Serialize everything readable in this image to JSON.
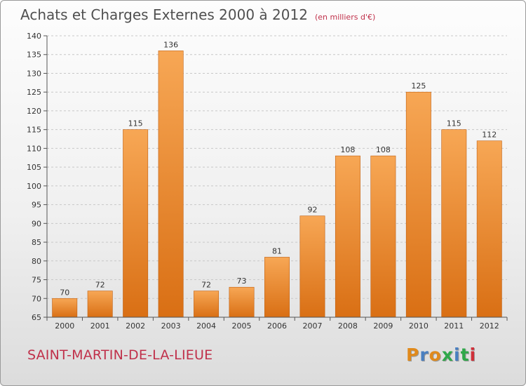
{
  "title": "Achats et Charges Externes 2000 à 2012",
  "unit_note": "(en milliers d'€)",
  "city": "SAINT-MARTIN-DE-LA-LIEUE",
  "logo": {
    "text": "Proxiti",
    "letter_colors": [
      "#e08a1c",
      "#4a7fc0",
      "#e08a1c",
      "#2fa84a",
      "#4a7fc0",
      "#2fa84a",
      "#d0303a"
    ]
  },
  "colors": {
    "bar_top": "#f7a755",
    "bar_bottom": "#d96f14",
    "bar_edge": "#c05f10",
    "grid": "#c8c8c8",
    "axis": "#555555"
  },
  "chart_data": {
    "type": "bar",
    "categories": [
      "2000",
      "2001",
      "2002",
      "2003",
      "2004",
      "2005",
      "2006",
      "2007",
      "2008",
      "2009",
      "2010",
      "2011",
      "2012"
    ],
    "values": [
      70,
      72,
      115,
      136,
      72,
      73,
      81,
      92,
      108,
      108,
      125,
      115,
      112
    ],
    "ylim": [
      65,
      140
    ],
    "yticks": [
      65,
      70,
      75,
      80,
      85,
      90,
      95,
      100,
      105,
      110,
      115,
      120,
      125,
      130,
      135,
      140
    ],
    "grid": "horizontal dashed",
    "title": "Achats et Charges Externes 2000 à 2012",
    "xlabel": "",
    "ylabel": ""
  }
}
